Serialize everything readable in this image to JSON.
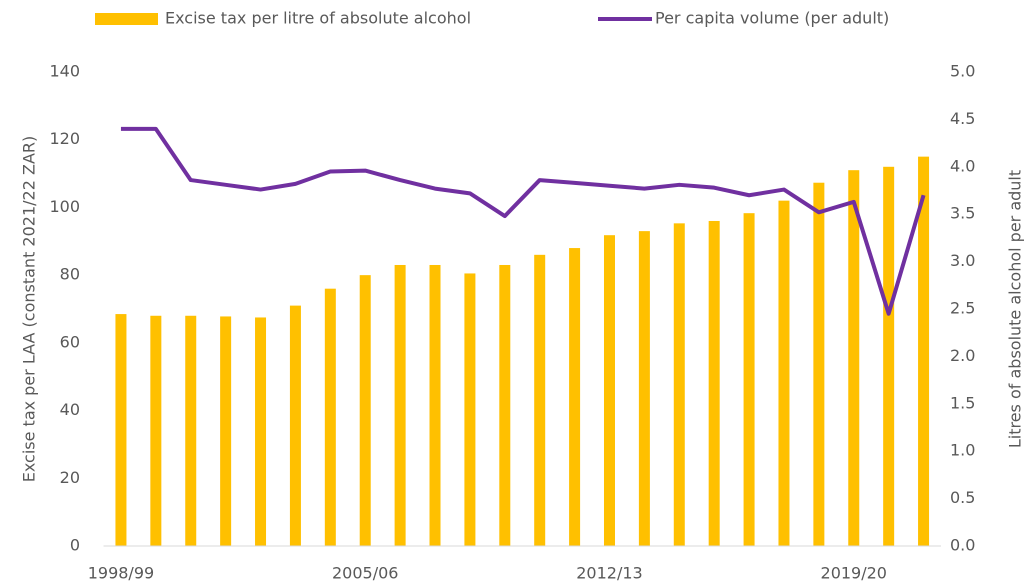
{
  "chart_data": {
    "type": "bar_line",
    "y_label": "Excise tax per LAA (constant 2021/22 ZAR)",
    "y2_label": "Litres of absolute alcohol per adult",
    "categories": [
      "1998/99",
      null,
      null,
      null,
      null,
      null,
      null,
      "2005/06",
      null,
      null,
      null,
      null,
      null,
      null,
      "2012/13",
      null,
      null,
      null,
      null,
      null,
      null,
      "2019/20",
      null,
      null
    ],
    "series": [
      {
        "name": "Excise tax per litre of absolute alcohol",
        "type": "bar",
        "color": "#ffc000",
        "values": [
          68.5,
          68,
          68,
          67.8,
          67.5,
          71,
          76,
          80,
          83,
          83,
          80.5,
          83,
          86,
          88,
          91.8,
          93,
          95.3,
          96,
          98.3,
          102,
          107.3,
          111,
          112,
          115
        ]
      },
      {
        "name": "Per capita volume (per adult)",
        "type": "line",
        "axis": "y2",
        "color": "#7030a0",
        "values": [
          4.4,
          4.4,
          3.86,
          3.81,
          3.76,
          3.82,
          3.95,
          3.96,
          3.86,
          3.77,
          3.72,
          3.48,
          3.86,
          3.83,
          3.8,
          3.77,
          3.81,
          3.78,
          3.7,
          3.76,
          3.52,
          3.63,
          2.45,
          3.7
        ]
      }
    ],
    "ylim": [
      0,
      140
    ],
    "yticks": [
      0,
      20,
      40,
      60,
      80,
      100,
      120,
      140
    ],
    "y2lim": [
      0,
      5
    ],
    "y2ticks": [
      {
        "value": 0,
        "label": "0.0"
      },
      {
        "value": 0.5,
        "label": "0.5"
      },
      {
        "value": 1,
        "label": "1.0"
      },
      {
        "value": 1.5,
        "label": "1.5"
      },
      {
        "value": 2,
        "label": "2.0"
      },
      {
        "value": 2.5,
        "label": "2.5"
      },
      {
        "value": 3,
        "label": "3.0"
      },
      {
        "value": 3.5,
        "label": "3.5"
      },
      {
        "value": 4,
        "label": "4.0"
      },
      {
        "value": 4.5,
        "label": "4.5"
      },
      {
        "value": 5,
        "label": "5.0"
      }
    ],
    "legend": "top"
  }
}
